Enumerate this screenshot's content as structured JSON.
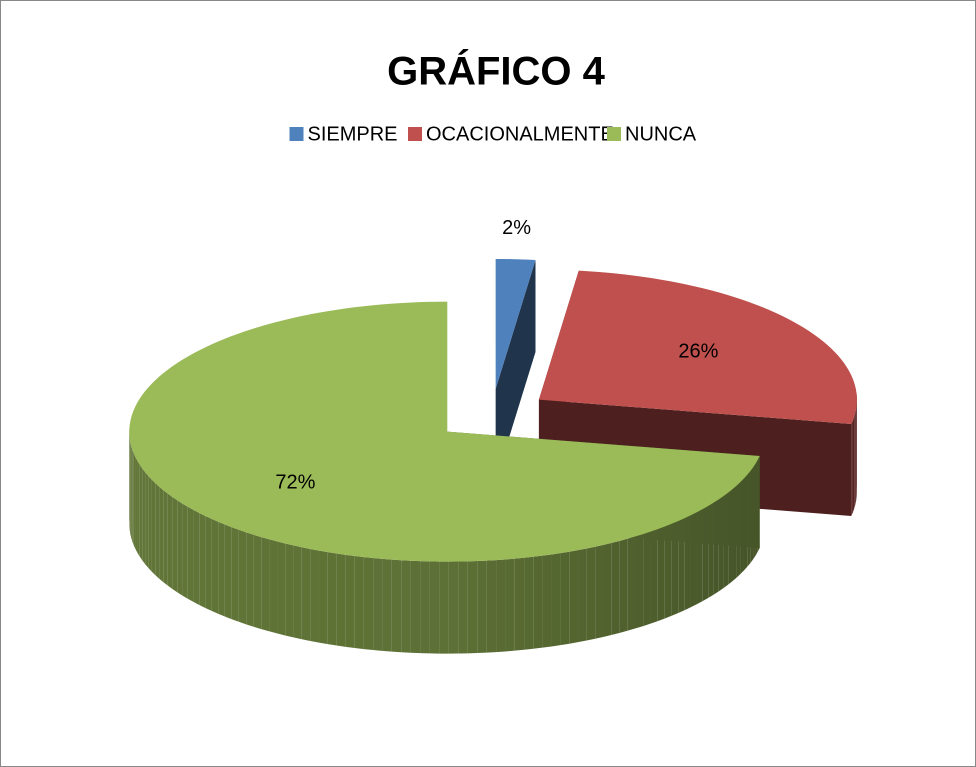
{
  "chart_data": {
    "type": "pie",
    "title": "GRÁFICO 4",
    "categories": [
      "SIEMPRE",
      "OCACIONALMENTE",
      "NUNCA"
    ],
    "values": [
      2,
      26,
      72
    ],
    "value_labels": [
      "2%",
      "26%",
      "72%"
    ],
    "colors": [
      "#4f81bd",
      "#c0504d",
      "#9bbb59"
    ],
    "legend": "top",
    "exploded": true,
    "3d": true
  }
}
